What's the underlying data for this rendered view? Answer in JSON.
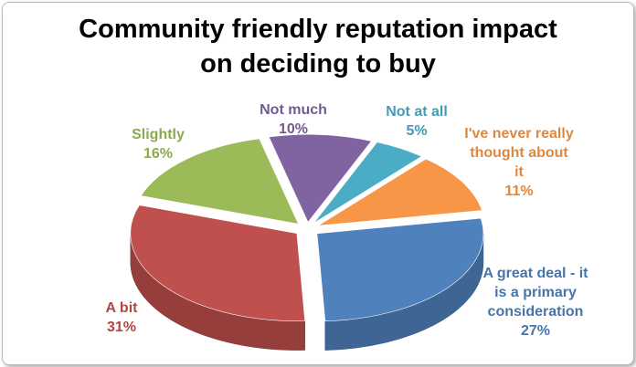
{
  "chart_data": {
    "type": "pie",
    "title": "Community friendly reputation impact on deciding to buy",
    "categories": [
      "A great deal - it is a primary consideration",
      "A bit",
      "Slightly",
      "Not much",
      "Not at all",
      "I've never really thought about it"
    ],
    "values": [
      27,
      31,
      16,
      10,
      5,
      11
    ],
    "value_labels": [
      "27%",
      "31%",
      "16%",
      "10%",
      "5%",
      "11%"
    ],
    "colors": [
      "#4f81bd",
      "#c0504d",
      "#9bbb59",
      "#8064a2",
      "#4bacc6",
      "#f79646"
    ]
  }
}
